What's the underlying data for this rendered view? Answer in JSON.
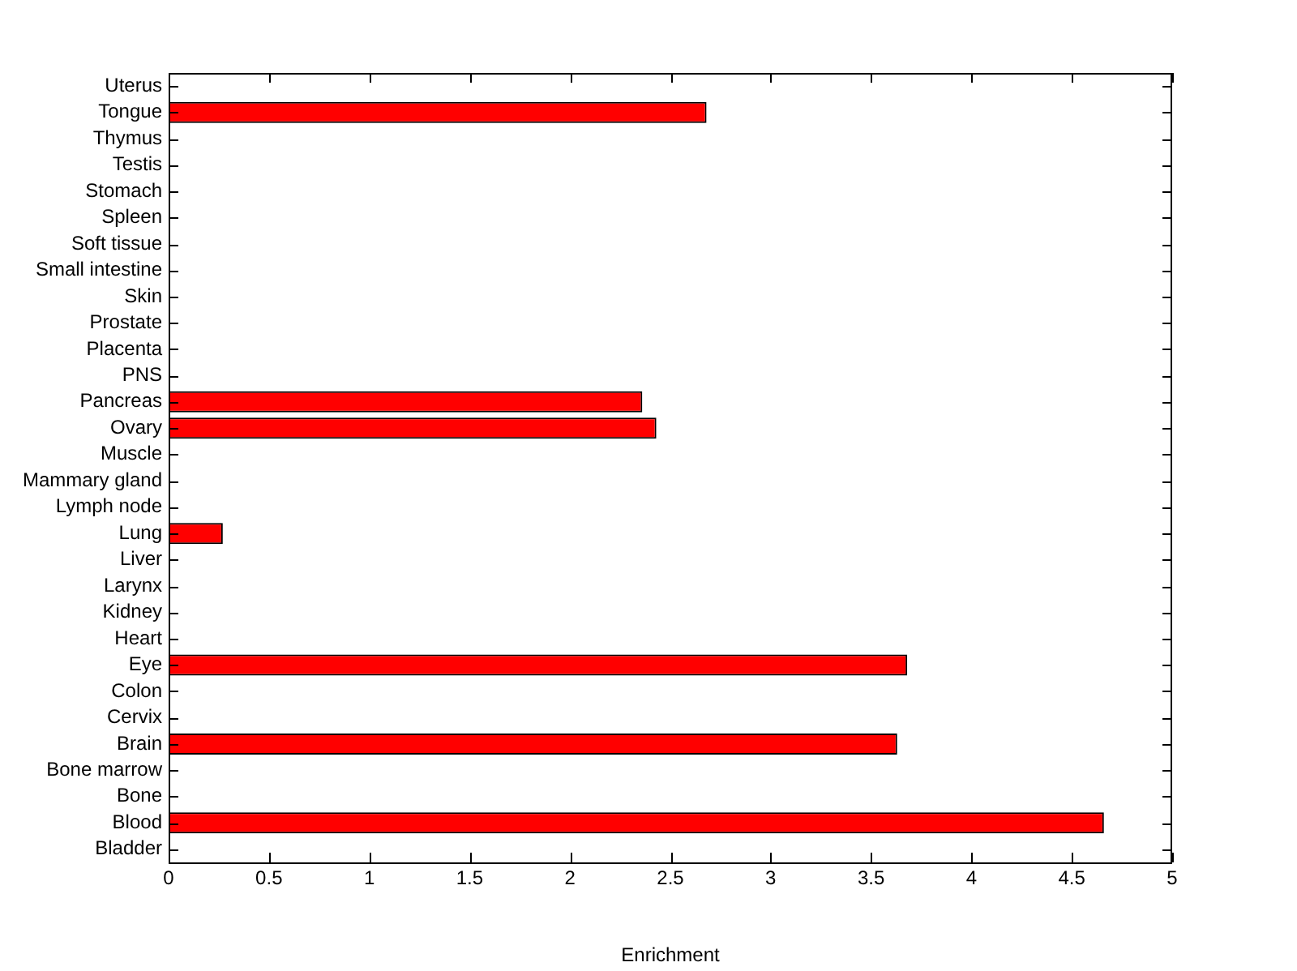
{
  "chart_data": {
    "type": "bar",
    "orientation": "horizontal",
    "xlabel": "Enrichment",
    "categories": [
      "Uterus",
      "Tongue",
      "Thymus",
      "Testis",
      "Stomach",
      "Spleen",
      "Soft tissue",
      "Small intestine",
      "Skin",
      "Prostate",
      "Placenta",
      "PNS",
      "Pancreas",
      "Ovary",
      "Muscle",
      "Mammary gland",
      "Lymph node",
      "Lung",
      "Liver",
      "Larynx",
      "Kidney",
      "Heart",
      "Eye",
      "Colon",
      "Cervix",
      "Brain",
      "Bone marrow",
      "Bone",
      "Blood",
      "Bladder"
    ],
    "values": [
      0,
      2.68,
      0,
      0,
      0,
      0,
      0,
      0,
      0,
      0,
      0,
      0,
      2.36,
      2.43,
      0,
      0,
      0,
      0.27,
      0,
      0,
      0,
      0,
      3.68,
      0,
      0,
      3.63,
      0,
      0,
      4.66,
      0
    ],
    "color": "#ff0000",
    "xlim": [
      0,
      5
    ],
    "xticks": [
      0,
      0.5,
      1,
      1.5,
      2,
      2.5,
      3,
      3.5,
      4,
      4.5,
      5
    ],
    "grid": false,
    "legend": false
  }
}
